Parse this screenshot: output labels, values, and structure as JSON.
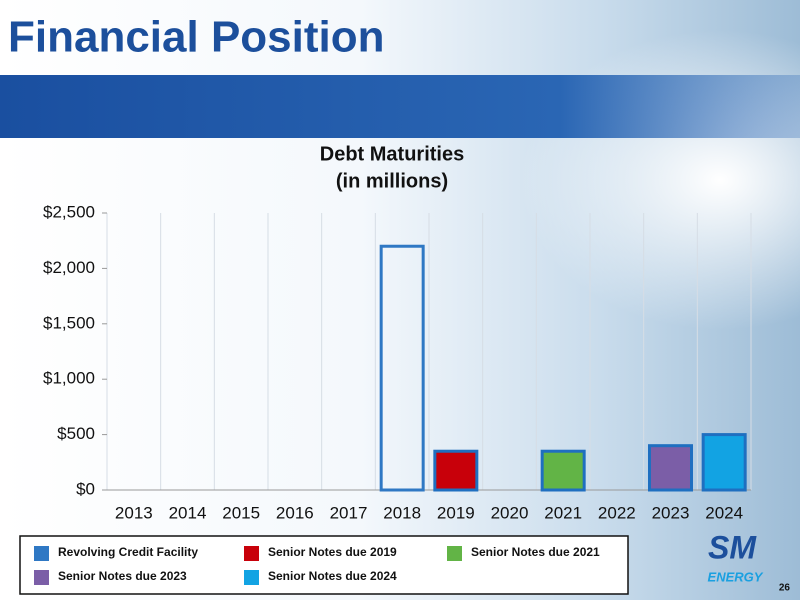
{
  "slide_title": "Financial Position",
  "logo": "SM",
  "logo_sub": "ENERGY",
  "page_number": "26",
  "chart_data": {
    "type": "bar",
    "title": "Debt Maturities",
    "subtitle": "(in millions)",
    "categories": [
      "2013",
      "2014",
      "2015",
      "2016",
      "2017",
      "2018",
      "2019",
      "2020",
      "2021",
      "2022",
      "2023",
      "2024"
    ],
    "series": [
      {
        "name": "Revolving Credit Facility",
        "color": "#2f78c4",
        "style": "outline",
        "values": [
          null,
          null,
          null,
          null,
          null,
          2200,
          null,
          null,
          null,
          null,
          null,
          null
        ]
      },
      {
        "name": "Senior Notes due 2019",
        "color": "#c8000a",
        "values": [
          null,
          null,
          null,
          null,
          null,
          null,
          350,
          null,
          null,
          null,
          null,
          null
        ]
      },
      {
        "name": "Senior Notes due 2021",
        "color": "#62b446",
        "values": [
          null,
          null,
          null,
          null,
          null,
          null,
          null,
          null,
          350,
          null,
          null,
          null
        ]
      },
      {
        "name": "Senior Notes due 2023",
        "color": "#7b5ea7",
        "values": [
          null,
          null,
          null,
          null,
          null,
          null,
          null,
          null,
          null,
          null,
          400,
          null
        ]
      },
      {
        "name": "Senior Notes due 2024",
        "color": "#12a3e3",
        "values": [
          null,
          null,
          null,
          null,
          null,
          null,
          null,
          null,
          null,
          null,
          null,
          500
        ]
      }
    ],
    "ylim": [
      0,
      2500
    ],
    "yticks": [
      {
        "value": 0,
        "label": "$0"
      },
      {
        "value": 500,
        "label": "$500"
      },
      {
        "value": 1000,
        "label": "$1,000"
      },
      {
        "value": 1500,
        "label": "$1,500"
      },
      {
        "value": 2000,
        "label": "$2,000"
      },
      {
        "value": 2500,
        "label": "$2,500"
      }
    ]
  }
}
